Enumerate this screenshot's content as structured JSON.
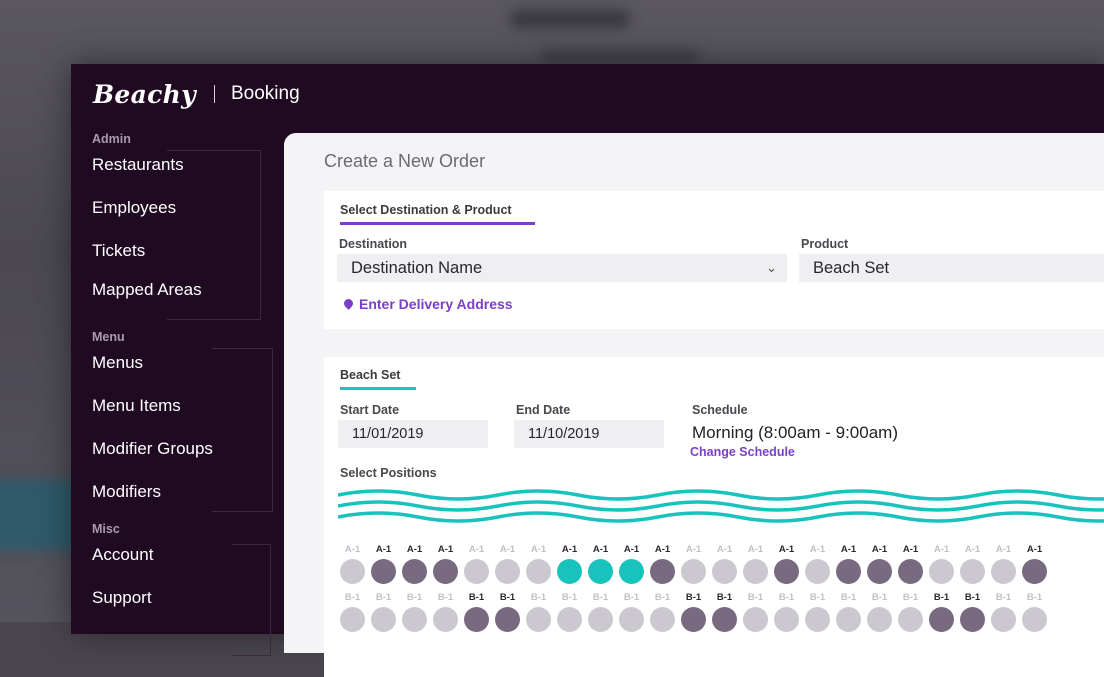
{
  "app": {
    "logo": "Beachy",
    "title": "Booking"
  },
  "sidebar": {
    "sections": [
      {
        "label": "Admin",
        "items": [
          "Restaurants",
          "Employees",
          "Tickets",
          "Mapped Areas"
        ]
      },
      {
        "label": "Menu",
        "items": [
          "Menus",
          "Menu Items",
          "Modifier Groups",
          "Modifiers"
        ]
      },
      {
        "label": "Misc",
        "items": [
          "Account",
          "Support"
        ]
      }
    ]
  },
  "page": {
    "title": "Create a New Order"
  },
  "destination_card": {
    "tab": "Select Destination & Product",
    "destination_label": "Destination",
    "destination_value": "Destination Name",
    "product_label": "Product",
    "product_value": "Beach Set",
    "delivery_link": "Enter Delivery Address"
  },
  "booking_card": {
    "tab": "Beach Set",
    "start_label": "Start Date",
    "start_value": "11/01/2019",
    "end_label": "End Date",
    "end_value": "11/10/2019",
    "schedule_label": "Schedule",
    "schedule_value": "Morning (8:00am - 9:00am)",
    "change_schedule": "Change Schedule",
    "positions_label": "Select Positions"
  },
  "colors": {
    "accent_purple": "#7b3fc7",
    "accent_teal": "#19c3bd",
    "occupied": "#786a80",
    "available": "#ccc8d0",
    "sidebar_bg": "#1f0a21"
  },
  "positions": {
    "row_a": {
      "label": "A-1",
      "states": [
        "available",
        "occupied",
        "occupied",
        "occupied",
        "available",
        "available",
        "available",
        "selected",
        "selected",
        "selected",
        "occupied",
        "available",
        "available",
        "available",
        "occupied",
        "available",
        "occupied",
        "occupied",
        "occupied",
        "available",
        "available",
        "available",
        "occupied"
      ]
    },
    "row_b": {
      "label": "B-1",
      "states": [
        "available",
        "available",
        "available",
        "available",
        "occupied",
        "occupied",
        "available",
        "available",
        "available",
        "available",
        "available",
        "occupied",
        "occupied",
        "available",
        "available",
        "available",
        "available",
        "available",
        "available",
        "occupied",
        "occupied",
        "available",
        "available"
      ]
    }
  }
}
